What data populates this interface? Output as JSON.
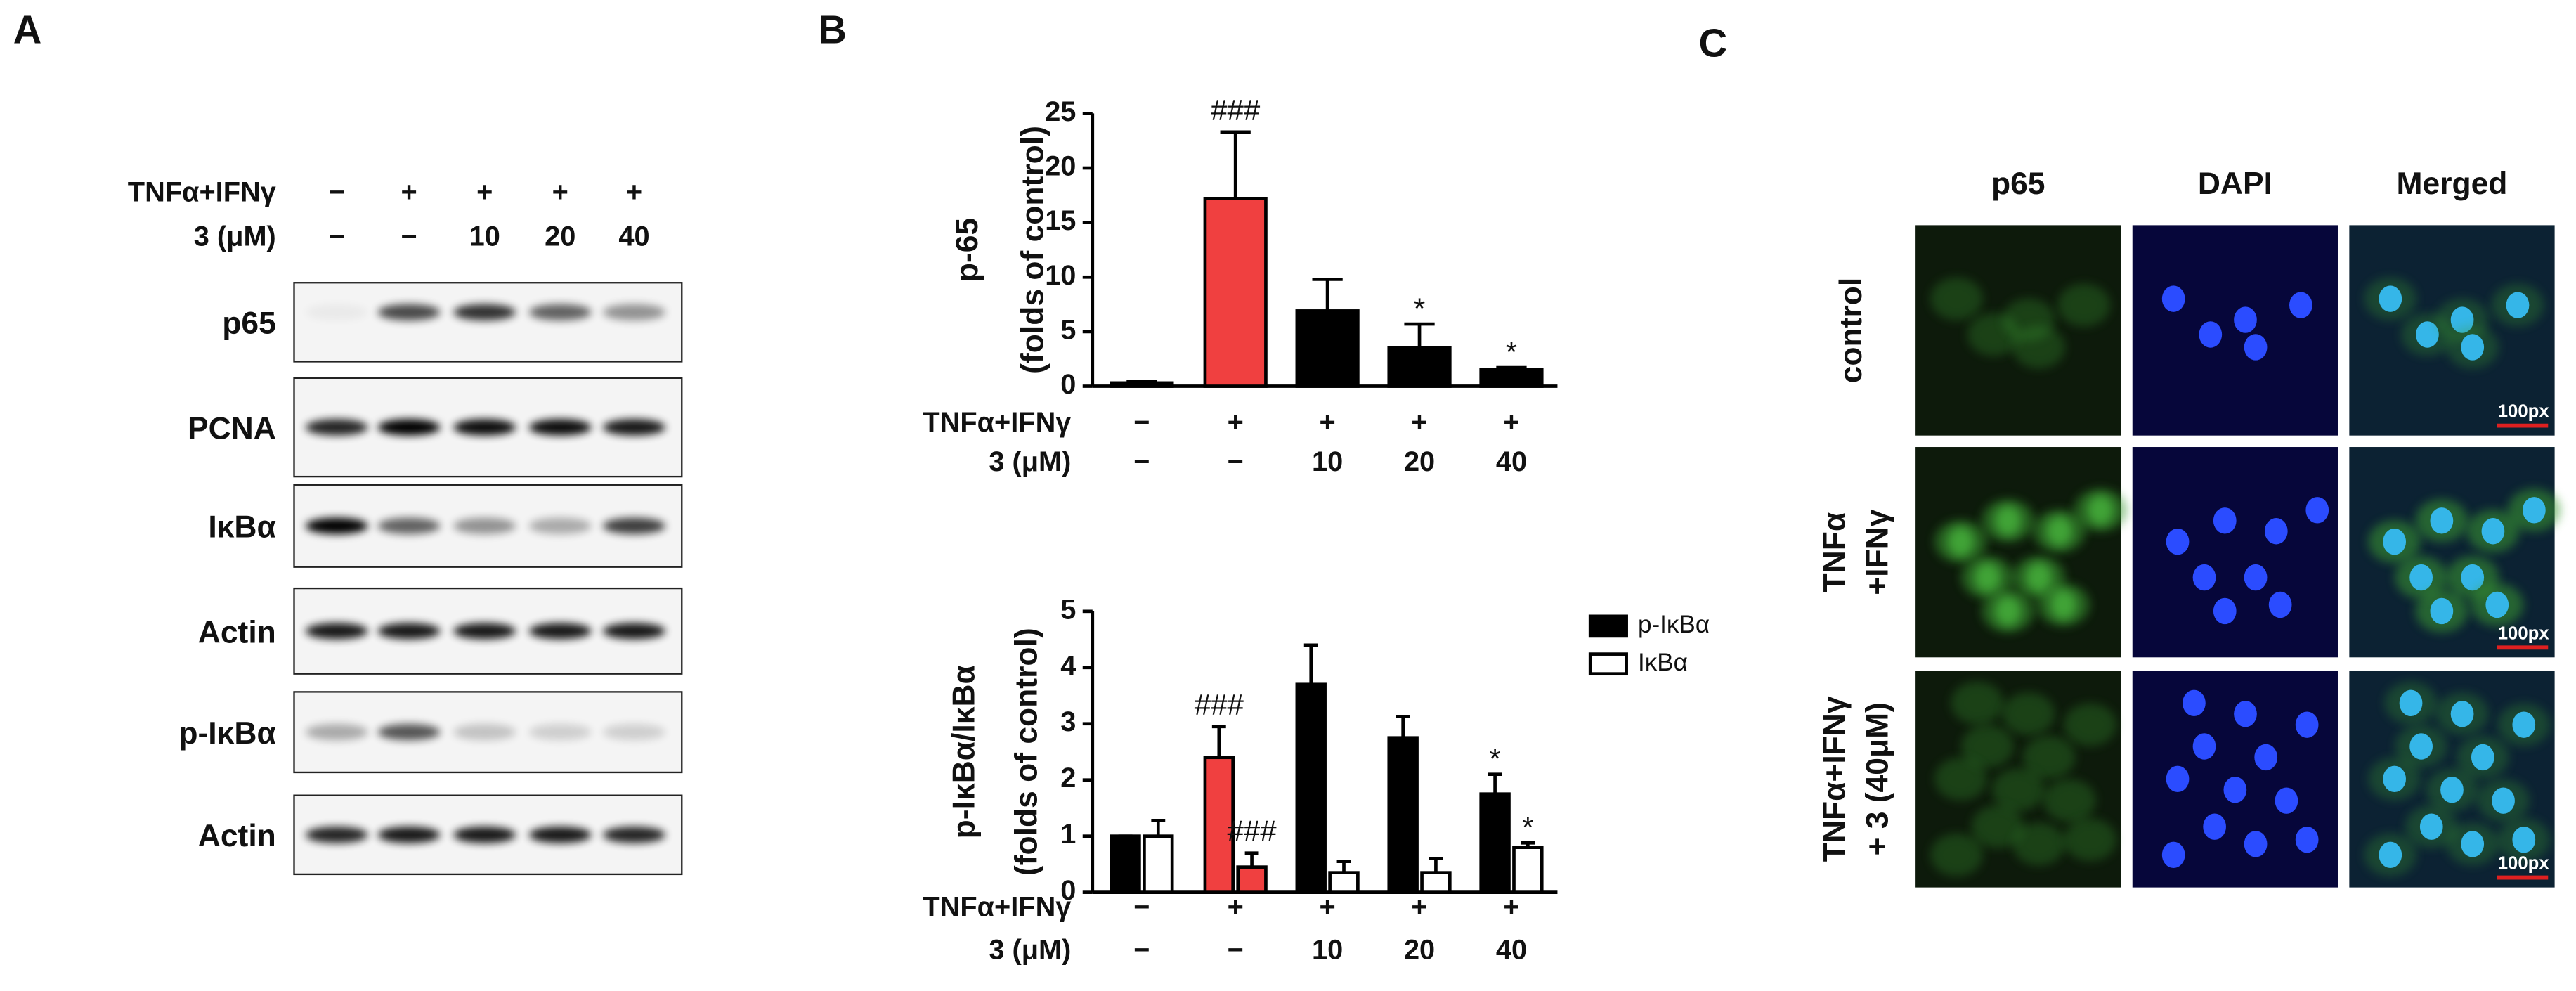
{
  "panel_labels": [
    "A",
    "B",
    "C"
  ],
  "blot": {
    "treatments": [
      {
        "label": "TNFα+IFNγ",
        "values": [
          "−",
          "+",
          "+",
          "+",
          "+"
        ]
      },
      {
        "label": "3 (μM)",
        "values": [
          "−",
          "−",
          "10",
          "20",
          "40"
        ]
      }
    ],
    "rows": [
      "p65",
      "PCNA",
      "IκBα",
      "Actin",
      "p-IκBα",
      "Actin"
    ]
  },
  "chart_data": [
    {
      "type": "bar",
      "ylabel": [
        "p-65",
        "(folds of control)"
      ],
      "ylim": [
        0,
        25
      ],
      "yticks": [
        0,
        5,
        10,
        15,
        20,
        25
      ],
      "category_rows": [
        {
          "label": "TNFα+IFNγ",
          "values": [
            "−",
            "+",
            "+",
            "+",
            "+"
          ]
        },
        {
          "label": "3 (μM)",
          "values": [
            "−",
            "−",
            "10",
            "20",
            "40"
          ]
        }
      ],
      "series": [
        {
          "colors": [
            "#000000",
            "#f04040",
            "#000000",
            "#000000",
            "#000000"
          ],
          "values": [
            0.3,
            17.2,
            6.9,
            3.5,
            1.5
          ],
          "errors": [
            0.1,
            6.1,
            2.9,
            2.2,
            0.2
          ]
        }
      ],
      "annotations": [
        {
          "text": "###",
          "series": 0,
          "index": 1
        },
        {
          "text": "*",
          "series": 0,
          "index": 3
        },
        {
          "text": "*",
          "series": 0,
          "index": 4
        }
      ]
    },
    {
      "type": "bar",
      "ylabel": [
        "p-IκBα/IκBα",
        "(folds of control)"
      ],
      "ylim": [
        0,
        5
      ],
      "yticks": [
        0,
        1,
        2,
        3,
        4,
        5
      ],
      "category_rows": [
        {
          "label": "TNFα+IFNγ",
          "values": [
            "−",
            "+",
            "+",
            "+",
            "+"
          ]
        },
        {
          "label": "3 (μM)",
          "values": [
            "−",
            "−",
            "10",
            "20",
            "40"
          ]
        }
      ],
      "series": [
        {
          "name": "p-IκBα",
          "colors": [
            "#000000",
            "#f04040",
            "#000000",
            "#000000",
            "#000000"
          ],
          "values": [
            1.0,
            2.4,
            3.7,
            2.75,
            1.75
          ],
          "errors": [
            0,
            0.55,
            0.7,
            0.38,
            0.35
          ]
        },
        {
          "name": "IκBα",
          "colors": [
            "#ffffff",
            "#f04040",
            "#ffffff",
            "#ffffff",
            "#ffffff"
          ],
          "values": [
            1.0,
            0.45,
            0.35,
            0.35,
            0.8
          ],
          "errors": [
            0.28,
            0.25,
            0.2,
            0.25,
            0.08
          ]
        }
      ],
      "legend": "right",
      "annotations": [
        {
          "text": "###",
          "series": 0,
          "index": 1
        },
        {
          "text": "###",
          "series": 1,
          "index": 1
        },
        {
          "text": "*",
          "series": 0,
          "index": 4
        },
        {
          "text": "*",
          "series": 1,
          "index": 4
        }
      ]
    }
  ],
  "microscopy": {
    "columns": [
      "p65",
      "DAPI",
      "Merged"
    ],
    "rows": [
      [
        "control"
      ],
      [
        "TNFα",
        "+IFNγ"
      ],
      [
        "TNFα+IFNγ",
        "+ 3 (40μM)"
      ]
    ],
    "scale_bar": [
      "100px",
      "100px",
      "100px"
    ]
  }
}
